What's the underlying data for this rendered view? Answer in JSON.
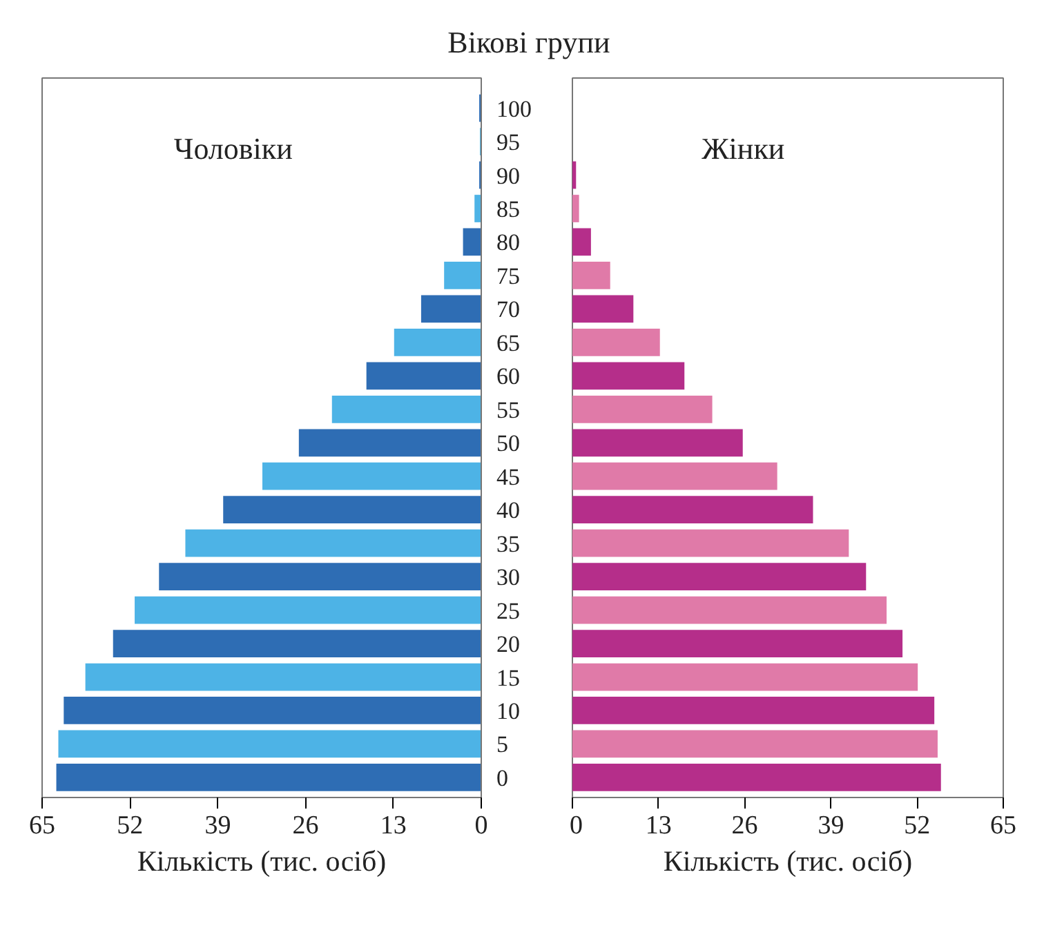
{
  "chart_data": [
    {
      "type": "bar",
      "orientation": "horizontal",
      "title": "Вікові групи",
      "xlabel": "Кількість (тис. осіб)",
      "categories": [
        "100",
        "95",
        "90",
        "85",
        "80",
        "75",
        "70",
        "65",
        "60",
        "55",
        "50",
        "45",
        "40",
        "35",
        "30",
        "25",
        "20",
        "15",
        "10",
        "5",
        "0"
      ],
      "series": [
        {
          "name": "Чоловіки",
          "colors": [
            "#2e6db4",
            "#4db3e6",
            "#2e6db4",
            "#4db3e6",
            "#2e6db4",
            "#4db3e6",
            "#2e6db4",
            "#4db3e6",
            "#2e6db4",
            "#4db3e6",
            "#2e6db4",
            "#4db3e6",
            "#2e6db4",
            "#4db3e6",
            "#2e6db4",
            "#4db3e6",
            "#2e6db4",
            "#4db3e6",
            "#2e6db4",
            "#4db3e6",
            "#2e6db4"
          ],
          "values": [
            0.3,
            0.2,
            0.3,
            1.0,
            2.7,
            5.5,
            8.9,
            12.9,
            17.0,
            22.1,
            27.0,
            32.4,
            38.2,
            43.8,
            47.7,
            51.3,
            54.5,
            58.6,
            61.8,
            62.6,
            62.9
          ]
        }
      ],
      "xlim": [
        65,
        0
      ],
      "xticks": [
        65,
        52,
        39,
        26,
        13,
        0
      ],
      "grid": false
    },
    {
      "type": "bar",
      "orientation": "horizontal",
      "xlabel": "Кількість (тис. осіб)",
      "categories": [
        "100",
        "95",
        "90",
        "85",
        "80",
        "75",
        "70",
        "65",
        "60",
        "55",
        "50",
        "45",
        "40",
        "35",
        "30",
        "25",
        "20",
        "15",
        "10",
        "5",
        "0"
      ],
      "series": [
        {
          "name": "Жінки",
          "colors": [
            "#b52e8a",
            "#e07aa8",
            "#b52e8a",
            "#e07aa8",
            "#b52e8a",
            "#e07aa8",
            "#b52e8a",
            "#e07aa8",
            "#b52e8a",
            "#e07aa8",
            "#b52e8a",
            "#e07aa8",
            "#b52e8a",
            "#e07aa8",
            "#b52e8a",
            "#e07aa8",
            "#b52e8a",
            "#e07aa8",
            "#b52e8a",
            "#e07aa8",
            "#b52e8a"
          ],
          "values": [
            0,
            0,
            0.55,
            1.0,
            2.8,
            5.7,
            9.2,
            13.2,
            16.9,
            21.1,
            25.7,
            30.9,
            36.3,
            41.7,
            44.3,
            47.4,
            49.8,
            52.1,
            54.6,
            55.1,
            55.6
          ]
        }
      ],
      "xlim": [
        0,
        65
      ],
      "xticks": [
        0,
        13,
        26,
        39,
        52,
        65
      ],
      "tick_labels": "x",
      "grid": false
    }
  ]
}
